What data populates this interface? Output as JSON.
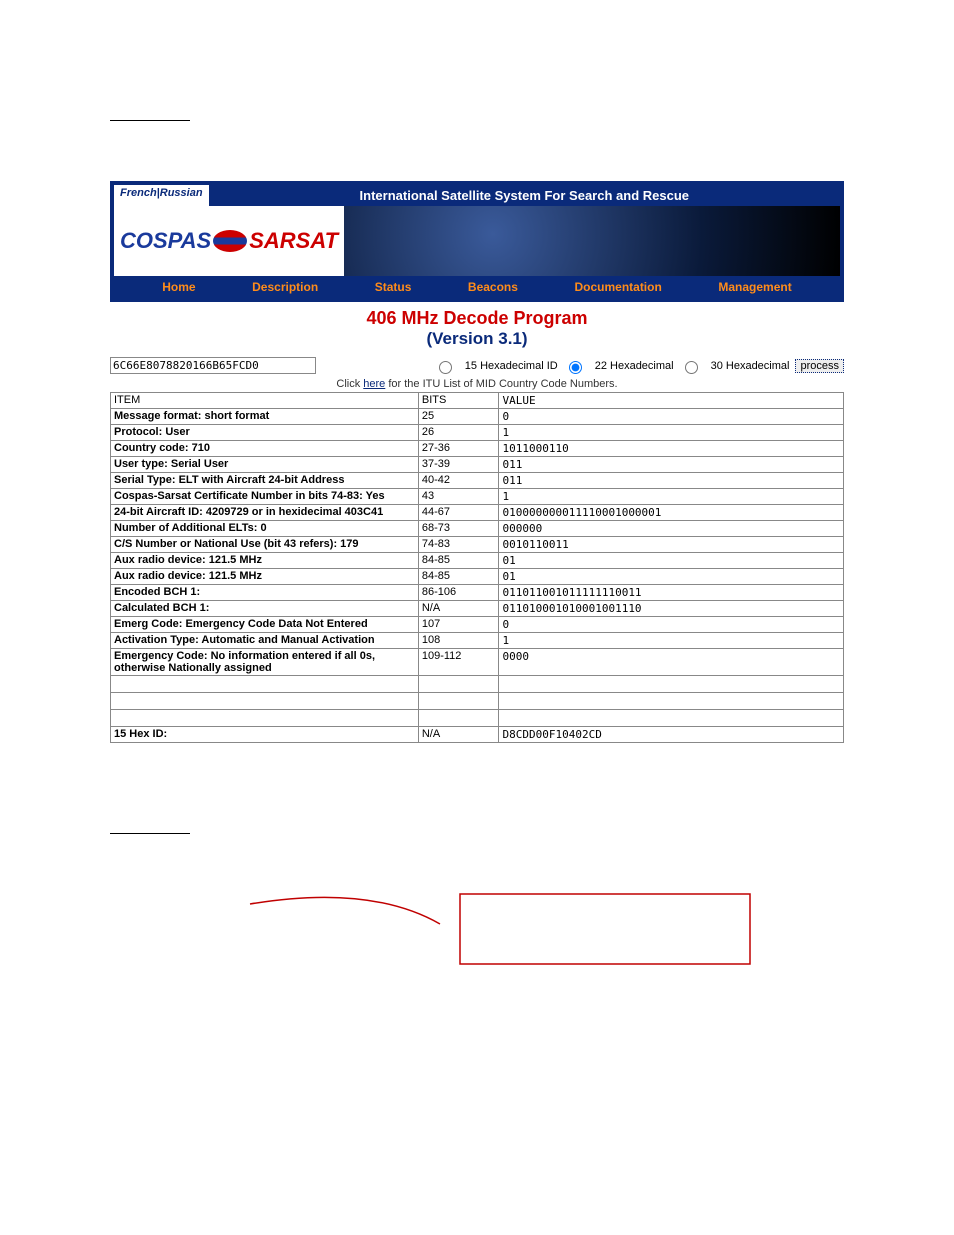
{
  "lang_links": "French|Russian",
  "tagline": "International Satellite System For Search and Rescue",
  "logo": {
    "left": "COSPAS",
    "right": "SARSAT"
  },
  "nav": [
    "Home",
    "Description",
    "Status",
    "Beacons",
    "Documentation",
    "Management"
  ],
  "title1": "406 MHz Decode Program",
  "title2": "(Version 3.1)",
  "hex_input": "6C66E8078820166B65FCD0",
  "radios": [
    {
      "label": "15 Hexadecimal ID",
      "checked": false
    },
    {
      "label": "22 Hexadecimal",
      "checked": true
    },
    {
      "label": "30 Hexadecimal",
      "checked": false
    }
  ],
  "process_label": "process",
  "itu_text_pre": "Click ",
  "itu_link": "here",
  "itu_text_post": " for the ITU List of MID Country Code Numbers.",
  "table_header": {
    "item": "ITEM",
    "bits": "BITS",
    "value": "VALUE"
  },
  "rows": [
    {
      "item": "Message format: short format",
      "bits": "25",
      "value": "0"
    },
    {
      "item": "Protocol: User",
      "bits": "26",
      "value": "1"
    },
    {
      "item": "Country code: 710",
      "bits": "27-36",
      "value": "1011000110"
    },
    {
      "item": "User type: Serial User",
      "bits": "37-39",
      "value": "011"
    },
    {
      "item": "Serial Type: ELT with Aircraft 24-bit Address",
      "bits": "40-42",
      "value": "011"
    },
    {
      "item": "Cospas-Sarsat Certificate Number in bits 74-83: Yes",
      "bits": "43",
      "value": "1"
    },
    {
      "item": "24-bit Aircraft ID: 4209729 or in hexidecimal 403C41",
      "bits": "44-67",
      "value": "010000000011110001000001"
    },
    {
      "item": "Number of Additional ELTs: 0",
      "bits": "68-73",
      "value": "000000"
    },
    {
      "item": "C/S Number or National Use (bit 43 refers): 179",
      "bits": "74-83",
      "value": "0010110011"
    },
    {
      "item": "Aux radio device: 121.5 MHz",
      "bits": "84-85",
      "value": "01"
    },
    {
      "item": "Aux radio device: 121.5 MHz",
      "bits": "84-85",
      "value": "01"
    },
    {
      "item": "Encoded BCH 1:",
      "bits": "86-106",
      "value": "011011001011111110011"
    },
    {
      "item": "Calculated BCH 1:",
      "bits": "N/A",
      "value": "011010001010001001110"
    },
    {
      "item": "Emerg Code: Emergency Code Data Not Entered",
      "bits": "107",
      "value": "0"
    },
    {
      "item": "Activation Type: Automatic and Manual Activation",
      "bits": "108",
      "value": "1"
    },
    {
      "item": "Emergency Code: No information entered if all 0s, otherwise Nationally assigned",
      "bits": "109-112",
      "value": "0000"
    }
  ],
  "blank_rows": 3,
  "final_row": {
    "item": "15 Hex ID:",
    "bits": "N/A",
    "value": "D8CDD00F10402CD"
  },
  "colors": {
    "navy": "#0a2a7a",
    "red": "#c00000",
    "orange": "#ff8c1a",
    "border": "#888888",
    "bg": "#ffffff"
  }
}
